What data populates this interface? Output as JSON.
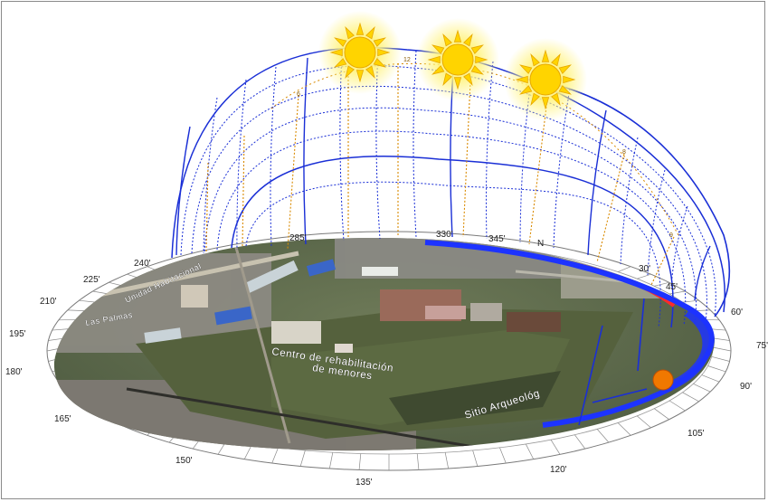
{
  "diagram": {
    "azimuth_labels": [
      {
        "text": "330'",
        "name": "azimuth-330"
      },
      {
        "text": "345'",
        "name": "azimuth-345"
      },
      {
        "text": "N",
        "name": "azimuth-north"
      },
      {
        "text": "30'",
        "name": "azimuth-30"
      },
      {
        "text": "45'",
        "name": "azimuth-45"
      },
      {
        "text": "60'",
        "name": "azimuth-60"
      },
      {
        "text": "75'",
        "name": "azimuth-75"
      },
      {
        "text": "90'",
        "name": "azimuth-90"
      },
      {
        "text": "105'",
        "name": "azimuth-105"
      },
      {
        "text": "120'",
        "name": "azimuth-120"
      },
      {
        "text": "135'",
        "name": "azimuth-135"
      },
      {
        "text": "150'",
        "name": "azimuth-150"
      },
      {
        "text": "165'",
        "name": "azimuth-165"
      },
      {
        "text": "180'",
        "name": "azimuth-180"
      },
      {
        "text": "195'",
        "name": "azimuth-195"
      },
      {
        "text": "210'",
        "name": "azimuth-210"
      },
      {
        "text": "225'",
        "name": "azimuth-225"
      },
      {
        "text": "240'",
        "name": "azimuth-240"
      },
      {
        "text": "285'",
        "name": "azimuth-285"
      }
    ],
    "map_labels": {
      "centro_line1": "Centro de rehabilitación",
      "centro_line2": "de menores",
      "sitio": "Sitio Arqueológ",
      "street_left": "Unidad Habitacional",
      "street_mid": "Las Palmas"
    },
    "sky_numbers": [
      "12",
      "6",
      "8",
      "9"
    ],
    "colors": {
      "dome": "#1a2fd6",
      "sun": "#ffd400",
      "sun_glow": "#fff59a",
      "sun_ray": "#e8a800",
      "path_lines": "#d98a00",
      "equinox_band": "#1d33ff",
      "summer_band": "#ff2a2a",
      "sun_marker": "#f07800"
    },
    "icons": [
      "sun-icon",
      "sun-icon",
      "sun-icon"
    ]
  }
}
